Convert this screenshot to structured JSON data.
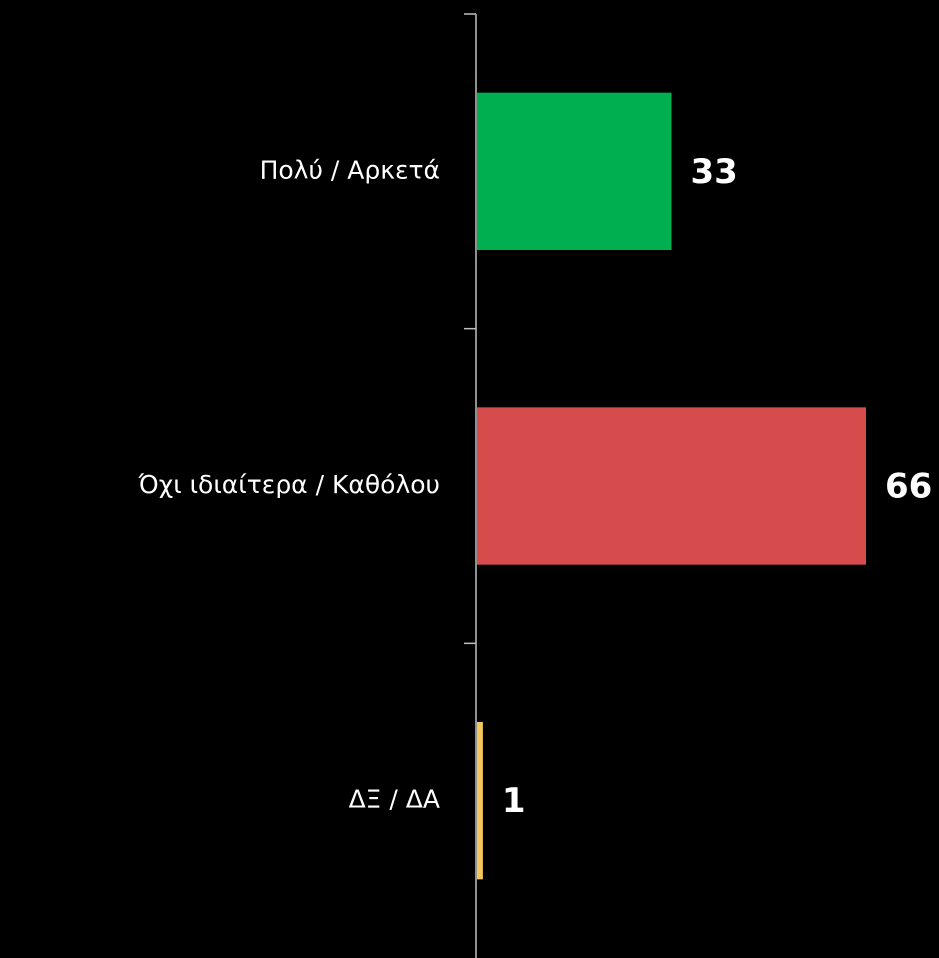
{
  "chart_data": {
    "type": "barh",
    "categories": [
      "Πολύ / Αρκετά",
      "Όχι ιδιαίτερα / Καθόλου",
      "ΔΞ / ΔΑ"
    ],
    "values": [
      33,
      66,
      1
    ],
    "colors": [
      "#00b050",
      "#d64b4b",
      "#f2c75c"
    ]
  }
}
